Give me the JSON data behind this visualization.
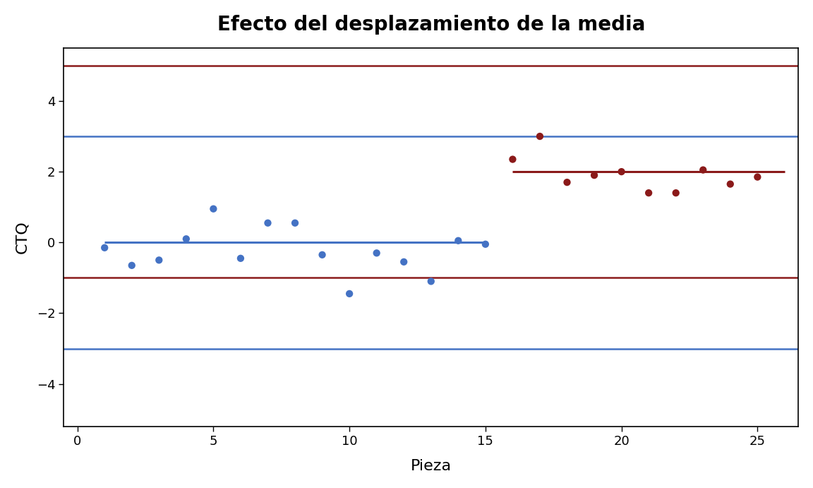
{
  "title": "Efecto del desplazamiento de la media",
  "xlabel": "Pieza",
  "ylabel": "CTQ",
  "xlim": [
    -0.5,
    26.5
  ],
  "ylim": [
    -5.2,
    5.5
  ],
  "yticks": [
    -4,
    -2,
    0,
    2,
    4
  ],
  "xticks": [
    0,
    5,
    10,
    15,
    20,
    25
  ],
  "blue_points_x": [
    1,
    2,
    3,
    4,
    5,
    6,
    7,
    8,
    9,
    10,
    11,
    12,
    13,
    14,
    15
  ],
  "blue_points_y": [
    -0.15,
    -0.65,
    -0.5,
    0.1,
    0.95,
    -0.45,
    0.55,
    0.55,
    -0.35,
    -1.45,
    -0.3,
    -0.55,
    -1.1,
    0.05,
    -0.05
  ],
  "dark_red_points_x": [
    16,
    17,
    18,
    19,
    20,
    21,
    22,
    23,
    24,
    25
  ],
  "dark_red_points_y": [
    2.35,
    3.0,
    1.7,
    1.9,
    2.0,
    1.4,
    1.4,
    2.05,
    1.65,
    1.85
  ],
  "blue_mean_line_x": [
    1,
    15
  ],
  "blue_mean_line_y": [
    0.0,
    0.0
  ],
  "dark_red_mean_line_x": [
    16,
    26
  ],
  "dark_red_mean_line_y": [
    2.0,
    2.0
  ],
  "hline_ucl_dark": 5.0,
  "hline_lcl_dark": -1.0,
  "hline_ucl_blue": 3.0,
  "hline_lcl_blue": -3.0,
  "blue_color": "#4472C4",
  "dark_red_color": "#8B1A1A",
  "background_color": "#FFFFFF",
  "outer_bg_color": "#E8E8E8",
  "title_fontsize": 20,
  "label_fontsize": 16,
  "tick_fontsize": 13,
  "point_size": 55
}
